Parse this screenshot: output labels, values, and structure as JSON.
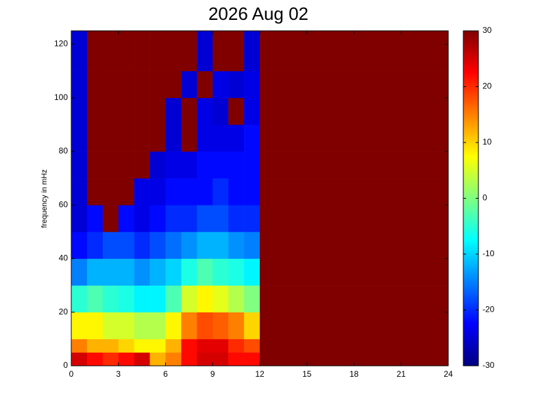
{
  "chart_data": {
    "type": "heatmap",
    "title": "2026 Aug 02",
    "y_label": "frequency in mHz",
    "colormap": "jet",
    "x_edges": [
      0,
      1,
      2,
      3,
      4,
      5,
      6,
      7,
      8,
      9,
      10,
      11,
      12,
      12.5,
      24
    ],
    "y_edges": [
      0,
      5,
      10,
      20,
      30,
      40,
      50,
      60,
      70,
      80,
      90,
      100,
      110,
      125
    ],
    "z": [
      [
        25,
        22,
        20,
        22,
        25,
        12,
        15,
        22,
        25,
        25,
        22,
        22,
        30,
        30
      ],
      [
        15,
        12,
        12,
        10,
        8,
        8,
        12,
        22,
        24,
        24,
        20,
        18,
        30,
        30
      ],
      [
        8,
        8,
        5,
        5,
        3,
        3,
        8,
        15,
        18,
        17,
        15,
        10,
        30,
        30
      ],
      [
        -5,
        -3,
        -5,
        -6,
        -8,
        -8,
        -3,
        5,
        8,
        6,
        3,
        0,
        30,
        30
      ],
      [
        -15,
        -12,
        -12,
        -12,
        -14,
        -12,
        -10,
        -6,
        -3,
        -5,
        -6,
        -8,
        30,
        30
      ],
      [
        -22,
        -20,
        -18,
        -18,
        -20,
        -18,
        -16,
        -14,
        -12,
        -12,
        -14,
        -15,
        30,
        30
      ],
      [
        -25,
        -22,
        30,
        -22,
        -24,
        -22,
        -20,
        -20,
        -18,
        -18,
        -20,
        -20,
        30,
        30
      ],
      [
        -25,
        30,
        30,
        30,
        -24,
        -24,
        -22,
        -22,
        -22,
        -20,
        -22,
        -22,
        30,
        30
      ],
      [
        -25,
        30,
        30,
        30,
        30,
        -25,
        -24,
        -24,
        -22,
        -22,
        -22,
        -22,
        30,
        30
      ],
      [
        -25,
        30,
        30,
        30,
        30,
        30,
        -25,
        30,
        -24,
        -24,
        -24,
        -22,
        30,
        30
      ],
      [
        -25,
        30,
        30,
        30,
        30,
        30,
        -25,
        30,
        -24,
        -25,
        30,
        -24,
        30,
        30
      ],
      [
        -25,
        30,
        30,
        30,
        30,
        30,
        30,
        -25,
        30,
        -24,
        -25,
        -24,
        30,
        30
      ],
      [
        -25,
        30,
        30,
        30,
        30,
        30,
        30,
        30,
        -25,
        30,
        30,
        -25,
        30,
        30
      ]
    ],
    "xlim": [
      0,
      24
    ],
    "xticks": [
      0,
      3,
      6,
      9,
      12,
      15,
      18,
      21,
      24
    ],
    "ylim": [
      0,
      125
    ],
    "yticks": [
      0,
      20,
      40,
      60,
      80,
      100,
      120
    ],
    "colorbar": {
      "lim": [
        -30,
        30
      ],
      "ticks": [
        -30,
        -20,
        -10,
        0,
        10,
        20,
        30
      ]
    }
  }
}
